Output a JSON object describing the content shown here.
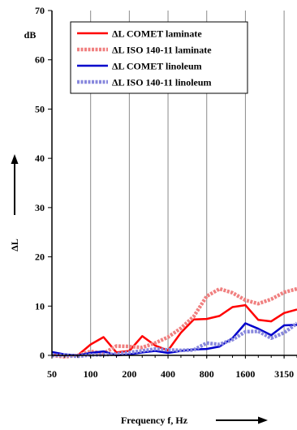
{
  "chart_data": {
    "type": "line",
    "x_type": "third-octave-bands",
    "x_scale": "log",
    "x_tick_labels": [
      "50",
      "100",
      "200",
      "400",
      "800",
      "1600",
      "3150"
    ],
    "x": [
      50,
      63,
      80,
      100,
      125,
      160,
      200,
      250,
      315,
      400,
      500,
      630,
      800,
      1000,
      1250,
      1600,
      2000,
      2500,
      3150,
      4000
    ],
    "xlabel": "Frequency f, Hz",
    "ylabel": "ΔL",
    "yunit": "dB",
    "ylim": [
      0,
      70
    ],
    "y_ticks": [
      0,
      10,
      20,
      30,
      40,
      50,
      60,
      70
    ],
    "grid_x": true,
    "grid_y": false,
    "legend_position": "top-left",
    "series": [
      {
        "name": "ΔL COMET laminate",
        "color": "#ff0000",
        "style": "solid",
        "values": [
          0.1,
          0,
          0,
          2.2,
          3.7,
          0.6,
          0.9,
          3.9,
          2.0,
          1.0,
          4.6,
          7.3,
          7.4,
          8.0,
          9.8,
          10.2,
          7.2,
          6.9,
          8.6,
          9.3
        ]
      },
      {
        "name": "ΔL ISO 140-11 laminate",
        "color": "#f08080",
        "style": "dashed-thick",
        "values": [
          0,
          -0.3,
          0,
          0.8,
          0.4,
          1.9,
          1.8,
          1.6,
          2.5,
          3.7,
          5.5,
          7.9,
          12.0,
          13.5,
          12.7,
          11.2,
          10.5,
          11.4,
          12.8,
          13.5
        ]
      },
      {
        "name": "ΔL COMET linoleum",
        "color": "#0000cc",
        "style": "solid",
        "values": [
          0.7,
          0.2,
          0,
          0.5,
          0.8,
          0,
          0.2,
          0.6,
          0.9,
          0.5,
          0.9,
          1.2,
          1.3,
          1.8,
          3.5,
          6.5,
          5.4,
          4.1,
          6.1,
          6.2
        ]
      },
      {
        "name": "ΔL ISO 140-11 linoleum",
        "color": "#8888dd",
        "style": "dashed-thick",
        "values": [
          0,
          0,
          -0.2,
          0.1,
          0.1,
          0.3,
          0.6,
          0.9,
          1.3,
          1.1,
          1.0,
          1.1,
          2.5,
          2.2,
          3.2,
          4.8,
          4.9,
          3.5,
          4.6,
          6.5
        ]
      }
    ]
  }
}
